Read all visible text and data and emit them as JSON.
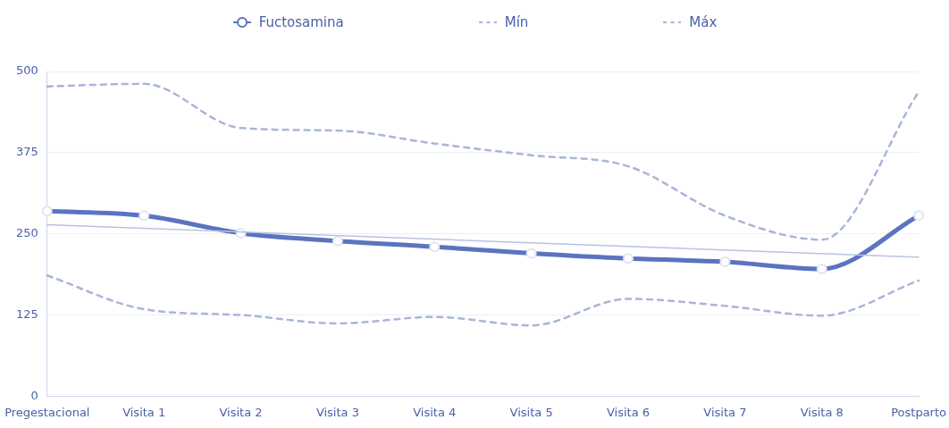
{
  "chart_data": {
    "type": "line",
    "categories": [
      "Pregestacional",
      "Visita 1",
      "Visita 2",
      "Visita 3",
      "Visita 4",
      "Visita 5",
      "Visita 6",
      "Visita 7",
      "Visita 8",
      "Postparto"
    ],
    "series": [
      {
        "name": "Fuctosamina",
        "color": "#5b73c0",
        "marker": "circle",
        "line_style": "solid",
        "values": [
          285,
          278,
          251,
          239,
          230,
          220,
          212,
          207,
          196,
          278
        ]
      },
      {
        "name": "Mín",
        "color": "#a9b5d9",
        "marker": "none",
        "line_style": "dashed",
        "values": [
          186,
          134,
          125,
          112,
          122,
          109,
          150,
          139,
          124,
          178
        ]
      },
      {
        "name": "Máx",
        "color": "#a9b5d9",
        "marker": "none",
        "line_style": "dashed",
        "values": [
          477,
          481,
          413,
          409,
          389,
          371,
          354,
          278,
          241,
          469
        ]
      },
      {
        "type": "line",
        "color": "#b8c3e3",
        "marker": "none",
        "line_style": "solid",
        "x": [
          "Pregestacional",
          "Postparto"
        ],
        "values": [
          264,
          214
        ]
      }
    ],
    "ylim": [
      0,
      500
    ],
    "yticks": [
      0,
      125,
      250,
      375,
      500
    ],
    "grid": "y",
    "legend": "top"
  }
}
